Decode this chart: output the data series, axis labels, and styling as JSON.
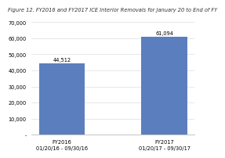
{
  "title": "Figure 12. FY2016 and FY2017 ICE Interior Removals for January 20 to End of FY",
  "categories": [
    "FY2016\n01/20/16 - 09/30/16",
    "FY2017\n01/20/17 - 09/30/17"
  ],
  "values": [
    44512,
    61094
  ],
  "bar_labels": [
    "44,512",
    "61,094"
  ],
  "bar_color": "#5b7fbe",
  "ylim": [
    0,
    70000
  ],
  "yticks": [
    0,
    10000,
    20000,
    30000,
    40000,
    50000,
    60000,
    70000
  ],
  "background_color": "#ffffff",
  "title_fontsize": 4.8,
  "tick_fontsize": 4.8,
  "bar_label_fontsize": 4.8,
  "bar_width": 0.45
}
